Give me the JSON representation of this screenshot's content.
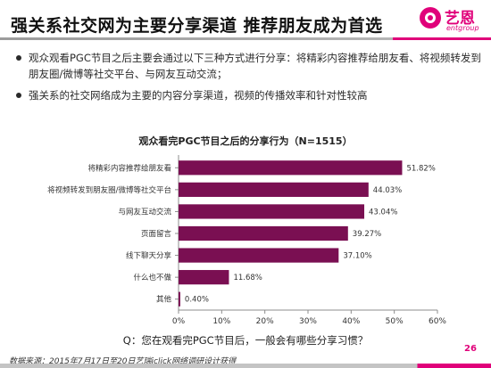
{
  "header": {
    "title": "强关系社交网为主要分享渠道  推荐朋友成为首选",
    "logo_cn": "艺恩",
    "logo_en": "entgroup"
  },
  "bullets": [
    "观众观看PGC节目之后主要会通过以下三种方式进行分享：将精彩内容推荐给朋友看、将视频转发到朋友圈/微博等社交平台、与网友互动交流；",
    "强关系的社交网络成为主要的内容分享渠道，视频的传播效率和针对性较高"
  ],
  "chart_data": {
    "type": "bar",
    "orientation": "horizontal",
    "title": "观众看完PGC节目之后的分享行为（N=1515）",
    "categories": [
      "将精彩内容推荐给朋友看",
      "将视频转发到朋友圈/微博等社交平台",
      "与网友互动交流",
      "页面留言",
      "线下聊天分享",
      "什么也不做",
      "其他"
    ],
    "values": [
      51.82,
      44.03,
      43.04,
      39.27,
      37.1,
      11.68,
      0.4
    ],
    "value_labels": [
      "51.82%",
      "44.03%",
      "43.04%",
      "39.27%",
      "37.10%",
      "11.68%",
      "0.40%"
    ],
    "xlim": [
      0,
      60
    ],
    "x_ticks": [
      "0%",
      "10%",
      "20%",
      "30%",
      "40%",
      "50%",
      "60%"
    ],
    "bar_color": "#7a0f52",
    "grid": false
  },
  "question": "Q：您在观看完PGC节目后，一般会有哪些分享习惯？",
  "footer": {
    "source": "数据来源：2015年7月17日至20日艺瑞iclick网络调研设计获得",
    "page_number": "26"
  },
  "colors": {
    "accent": "#e0007a",
    "bar": "#7a0f52"
  }
}
